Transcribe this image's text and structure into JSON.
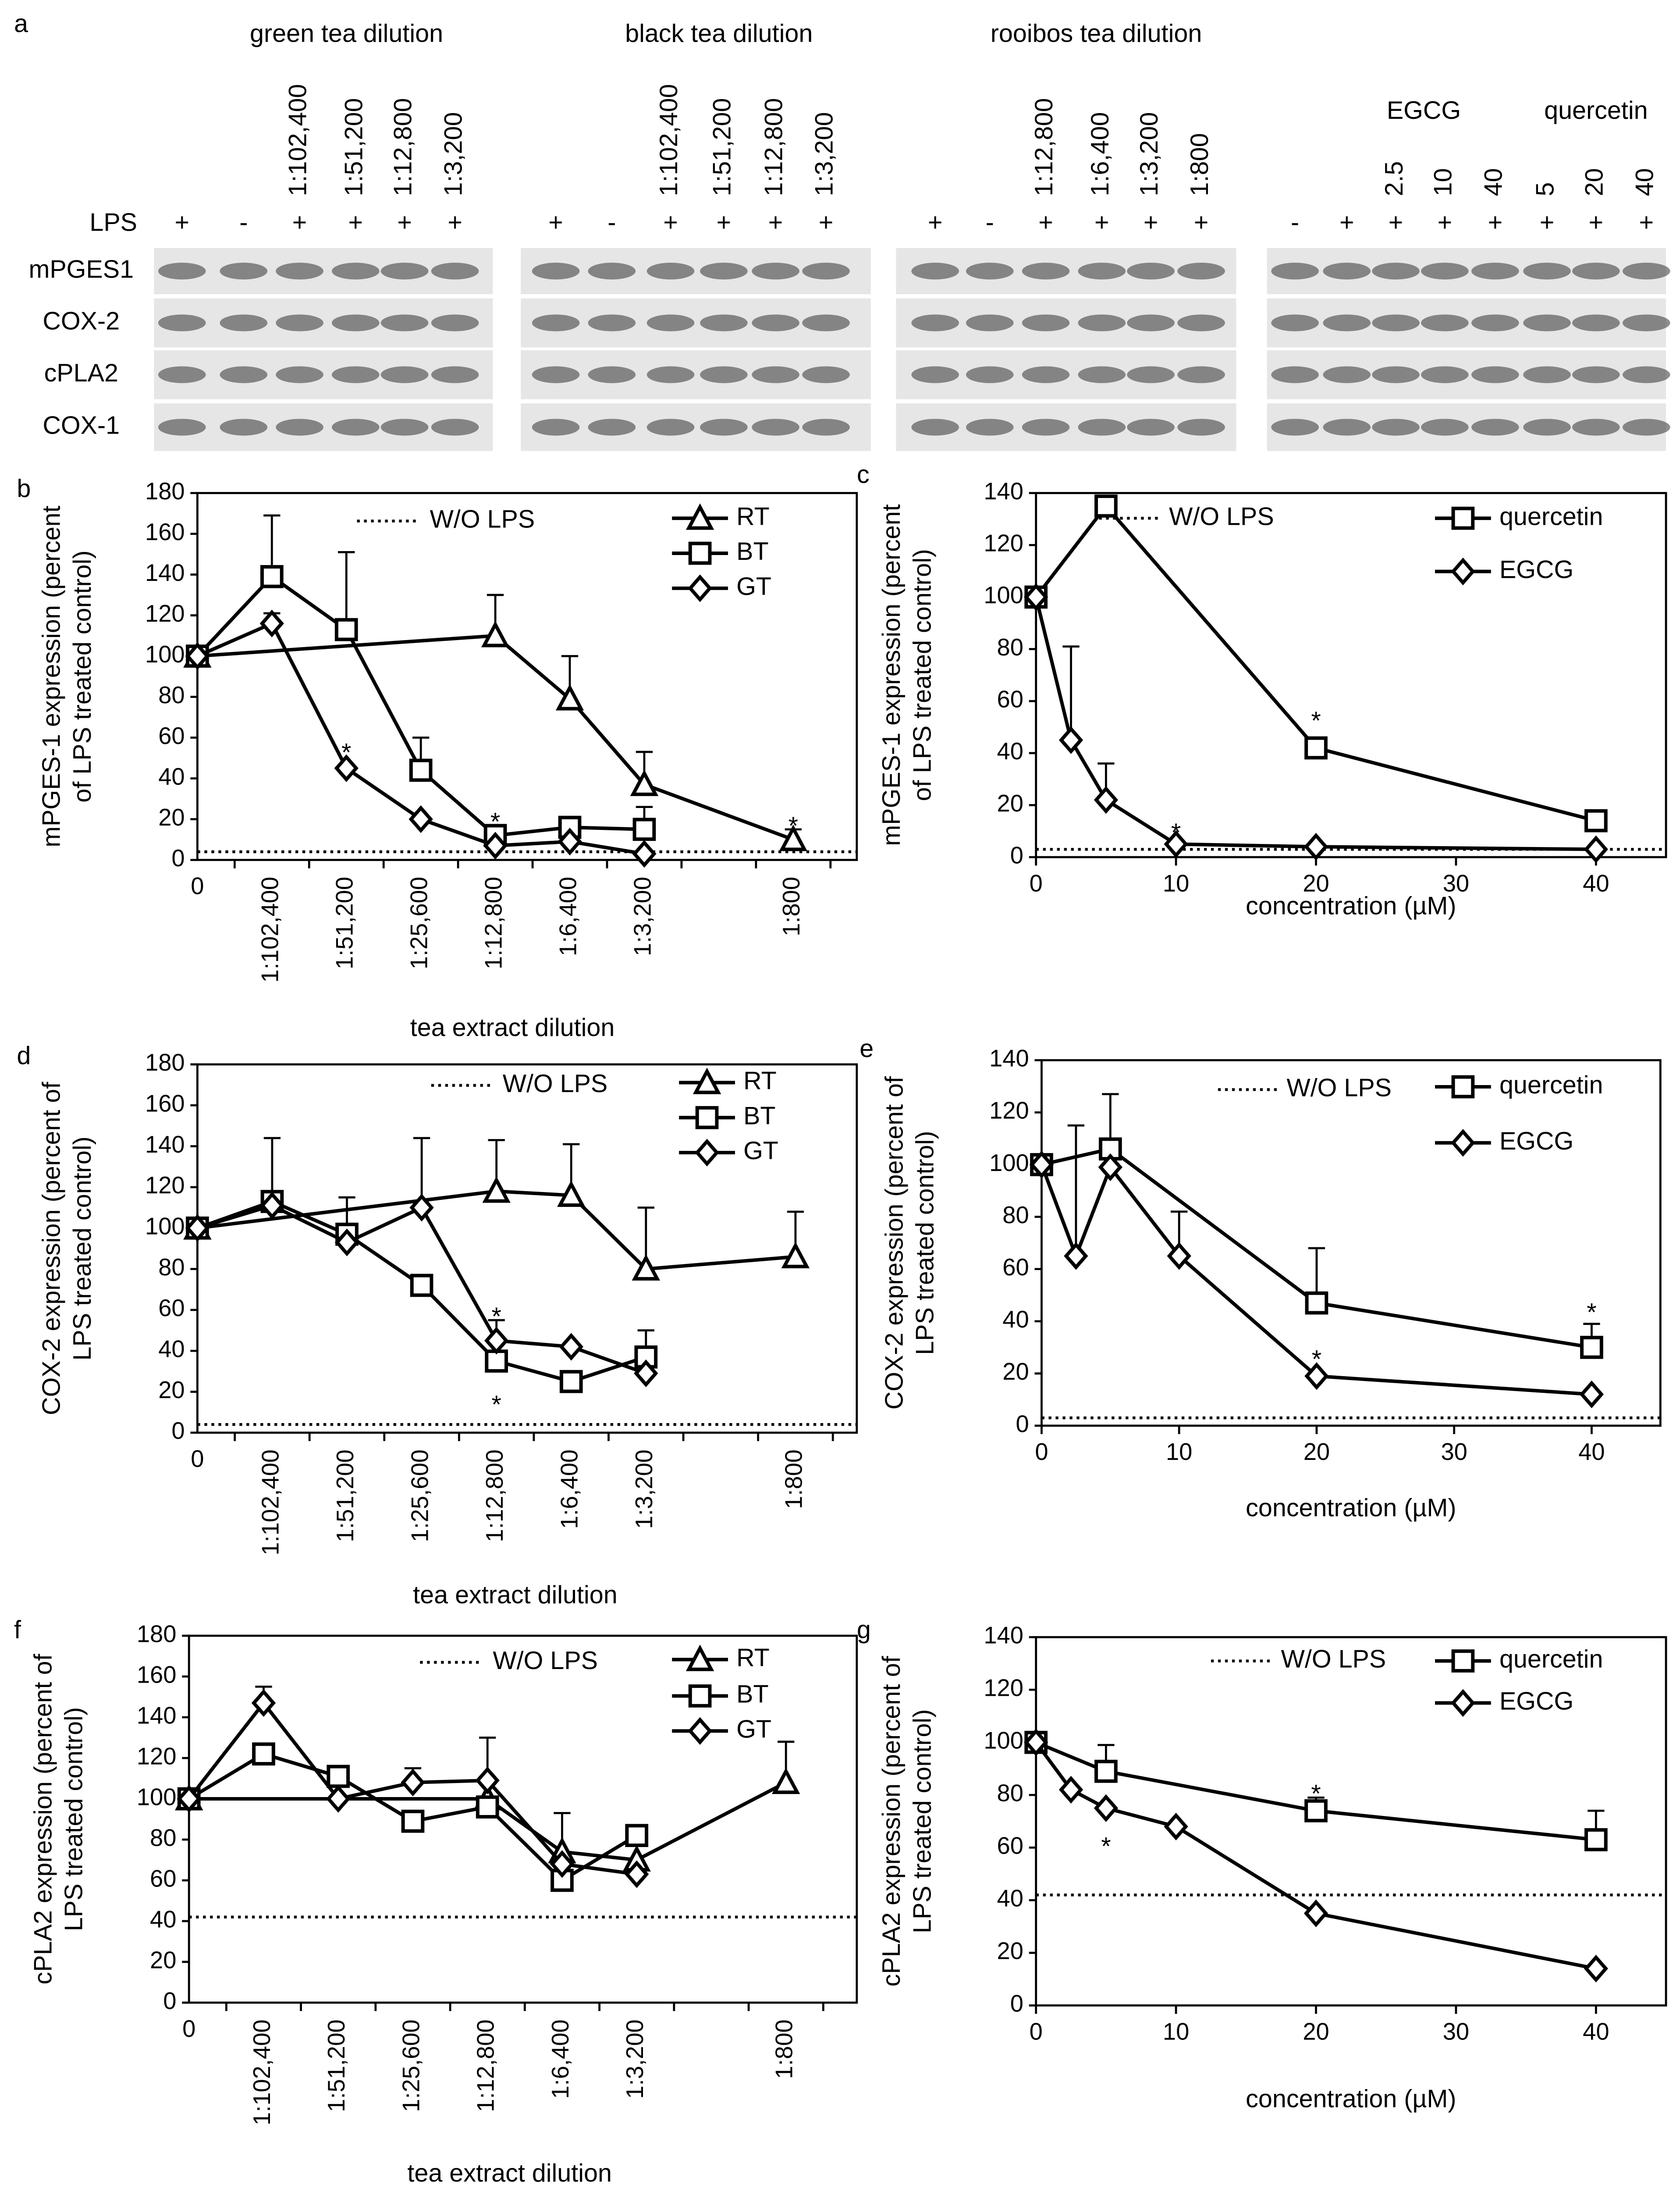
{
  "blot": {
    "panel": "a",
    "lps_label": "LPS",
    "rows": [
      "mPGES1",
      "COX-2",
      "cPLA2",
      "COX-1"
    ],
    "groups": [
      {
        "title": "green tea dilution",
        "lanes": [
          "1:102,400",
          "1:51,200",
          "1:12,800",
          "1:3,200"
        ],
        "lps": [
          "+",
          "-",
          "+",
          "+",
          "+",
          "+"
        ]
      },
      {
        "title": "black tea dilution",
        "lanes": [
          "1:102,400",
          "1:51,200",
          "1:12,800",
          "1:3,200"
        ],
        "lps": [
          "+",
          "-",
          "+",
          "+",
          "+",
          "+"
        ]
      },
      {
        "title": "rooibos tea dilution",
        "lanes": [
          "1:12,800",
          "1:6,400",
          "1:3,200",
          "1:800"
        ],
        "lps": [
          "+",
          "-",
          "+",
          "+",
          "+",
          "+"
        ]
      },
      {
        "lps": [
          "-",
          "+",
          "+",
          "+",
          "+",
          "+",
          "+",
          "+"
        ],
        "treatments": [
          {
            "title": "EGCG",
            "lanes": [
              "2.5",
              "10",
              "40"
            ]
          },
          {
            "title": "quercetin",
            "lanes": [
              "5",
              "20",
              "40"
            ]
          }
        ]
      }
    ]
  },
  "chart_data": [
    {
      "type": "line",
      "panel": "b",
      "ylabel": [
        "mPGES-1 expression (percent",
        "of LPS treated control)"
      ],
      "xlabel": "tea extract dilution",
      "categories": [
        "0",
        "1:102,400",
        "1:51,200",
        "1:25,600",
        "1:12,800",
        "1:6,400",
        "1:3,200",
        null,
        "1:800"
      ],
      "connect_nulls": true,
      "ylim": [
        0,
        180
      ],
      "yticks": [
        0,
        20,
        40,
        60,
        80,
        100,
        120,
        140,
        160,
        180
      ],
      "reference_line": {
        "name": "W/O LPS",
        "value": 4,
        "style": "dotted"
      },
      "legend": "top-right",
      "series": [
        {
          "name": "RT",
          "marker": "triangle",
          "color": "#000000",
          "values": [
            100,
            null,
            null,
            null,
            110,
            79,
            37,
            null,
            10
          ],
          "errors": [
            null,
            null,
            null,
            null,
            20,
            21,
            16,
            null,
            5
          ]
        },
        {
          "name": "BT",
          "marker": "square",
          "color": "#000000",
          "values": [
            100,
            139,
            113,
            44,
            12,
            16,
            15,
            null,
            null
          ],
          "errors": [
            null,
            30,
            38,
            16,
            null,
            null,
            11,
            null,
            null
          ]
        },
        {
          "name": "GT",
          "marker": "diamond",
          "color": "#000000",
          "values": [
            100,
            116,
            45,
            20,
            7,
            9,
            3,
            null,
            null
          ],
          "errors": [
            null,
            5,
            null,
            null,
            null,
            null,
            null,
            null,
            null
          ]
        }
      ],
      "annotations": [
        {
          "text": "*",
          "x": 2,
          "y": 56
        },
        {
          "text": "*",
          "x": 4,
          "y": 22
        },
        {
          "text": "*",
          "x": 8,
          "y": 20
        }
      ]
    },
    {
      "type": "line",
      "panel": "c",
      "ylabel": [
        "mPGES-1 expression (percent",
        "of LPS treated control)"
      ],
      "xlabel": "concentration (µM)",
      "xlim": [
        0,
        45
      ],
      "xticks": [
        0,
        10,
        20,
        30,
        40
      ],
      "ylim": [
        0,
        140
      ],
      "yticks": [
        0,
        20,
        40,
        60,
        80,
        100,
        120,
        140
      ],
      "reference_line": {
        "name": "W/O LPS",
        "value": 3,
        "style": "dotted"
      },
      "legend": "top-right",
      "series": [
        {
          "name": "quercetin",
          "marker": "square",
          "color": "#000000",
          "x": [
            0,
            5,
            20,
            40
          ],
          "values": [
            100,
            135,
            42,
            14
          ],
          "errors": [
            null,
            null,
            null,
            null
          ]
        },
        {
          "name": "EGCG",
          "marker": "diamond",
          "color": "#000000",
          "x": [
            0,
            2.5,
            5,
            10,
            20,
            40
          ],
          "values": [
            100,
            45,
            22,
            5,
            4,
            3
          ],
          "errors": [
            null,
            36,
            14,
            null,
            null,
            null
          ]
        }
      ],
      "annotations": [
        {
          "text": "*",
          "x": 10,
          "y": 12
        },
        {
          "text": "*",
          "x": 20,
          "y": 55
        }
      ]
    },
    {
      "type": "line",
      "panel": "d",
      "ylabel": [
        "COX-2 expression (percent of",
        "LPS treated control)"
      ],
      "xlabel": "tea extract dilution",
      "categories": [
        "0",
        "1:102,400",
        "1:51,200",
        "1:25,600",
        "1:12,800",
        "1:6,400",
        "1:3,200",
        null,
        "1:800"
      ],
      "connect_nulls": true,
      "ylim": [
        0,
        180
      ],
      "yticks": [
        0,
        20,
        40,
        60,
        80,
        100,
        120,
        140,
        160,
        180
      ],
      "reference_line": {
        "name": "W/O LPS",
        "value": 4,
        "style": "dotted"
      },
      "legend": "top-right",
      "series": [
        {
          "name": "RT",
          "marker": "triangle",
          "color": "#000000",
          "values": [
            100,
            null,
            null,
            null,
            118,
            116,
            80,
            null,
            86
          ],
          "errors": [
            null,
            null,
            null,
            null,
            25,
            25,
            30,
            null,
            22
          ]
        },
        {
          "name": "BT",
          "marker": "square",
          "color": "#000000",
          "values": [
            100,
            113,
            97,
            72,
            35,
            25,
            37,
            null,
            null
          ],
          "errors": [
            null,
            31,
            18,
            null,
            null,
            null,
            13,
            null,
            null
          ]
        },
        {
          "name": "GT",
          "marker": "diamond",
          "color": "#000000",
          "values": [
            100,
            111,
            93,
            110,
            45,
            42,
            29,
            null,
            null
          ],
          "errors": [
            null,
            null,
            null,
            34,
            10,
            null,
            null,
            null,
            null
          ]
        }
      ],
      "annotations": [
        {
          "text": "*",
          "x": 4,
          "y": 60
        },
        {
          "text": "*",
          "x": 4,
          "y": 17
        }
      ]
    },
    {
      "type": "line",
      "panel": "e",
      "ylabel": [
        "COX-2 expression (percent of",
        "LPS treated control)"
      ],
      "xlabel": "concentration (µM)",
      "xlim": [
        0,
        45
      ],
      "xticks": [
        0,
        10,
        20,
        30,
        40
      ],
      "ylim": [
        0,
        140
      ],
      "yticks": [
        0,
        20,
        40,
        60,
        80,
        100,
        120,
        140
      ],
      "reference_line": {
        "name": "W/O LPS",
        "value": 3,
        "style": "dotted"
      },
      "legend": "top-right",
      "series": [
        {
          "name": "quercetin",
          "marker": "square",
          "color": "#000000",
          "x": [
            0,
            5,
            20,
            40
          ],
          "values": [
            100,
            106,
            47,
            30
          ],
          "errors": [
            null,
            21,
            21,
            9
          ]
        },
        {
          "name": "EGCG",
          "marker": "diamond",
          "color": "#000000",
          "x": [
            0,
            2.5,
            5,
            10,
            20,
            40
          ],
          "values": [
            100,
            65,
            99,
            65,
            19,
            12
          ],
          "errors": [
            null,
            50,
            null,
            17,
            null,
            null
          ]
        }
      ],
      "annotations": [
        {
          "text": "*",
          "x": 20,
          "y": 28
        },
        {
          "text": "*",
          "x": 40,
          "y": 46
        }
      ]
    },
    {
      "type": "line",
      "panel": "f",
      "ylabel": [
        "cPLA2 expression (percent of",
        "LPS treated control)"
      ],
      "xlabel": "tea extract dilution",
      "categories": [
        "0",
        "1:102,400",
        "1:51,200",
        "1:25,600",
        "1:12,800",
        "1:6,400",
        "1:3,200",
        null,
        "1:800"
      ],
      "connect_nulls": true,
      "ylim": [
        0,
        180
      ],
      "yticks": [
        0,
        20,
        40,
        60,
        80,
        100,
        120,
        140,
        160,
        180
      ],
      "reference_line": {
        "name": "W/O LPS",
        "value": 42,
        "style": "dotted"
      },
      "legend": "top-right",
      "series": [
        {
          "name": "RT",
          "marker": "triangle",
          "color": "#000000",
          "values": [
            100,
            null,
            null,
            null,
            100,
            74,
            70,
            null,
            108
          ],
          "errors": [
            null,
            null,
            null,
            null,
            null,
            19,
            null,
            null,
            20
          ]
        },
        {
          "name": "BT",
          "marker": "square",
          "color": "#000000",
          "values": [
            100,
            122,
            111,
            89,
            96,
            60,
            82,
            null,
            null
          ],
          "errors": [
            null,
            null,
            null,
            null,
            null,
            null,
            null,
            null,
            null
          ]
        },
        {
          "name": "GT",
          "marker": "diamond",
          "color": "#000000",
          "values": [
            100,
            147,
            100,
            108,
            109,
            68,
            63,
            null,
            null
          ],
          "errors": [
            null,
            8,
            null,
            7,
            21,
            null,
            null,
            null,
            null
          ]
        }
      ],
      "annotations": []
    },
    {
      "type": "line",
      "panel": "g",
      "ylabel": [
        "cPLA2 expression (percent of",
        "LPS treated control)"
      ],
      "xlabel": "concentration (µM)",
      "xlim": [
        0,
        45
      ],
      "xticks": [
        0,
        10,
        20,
        30,
        40
      ],
      "ylim": [
        0,
        140
      ],
      "yticks": [
        0,
        20,
        40,
        60,
        80,
        100,
        120,
        140
      ],
      "reference_line": {
        "name": "W/O LPS",
        "value": 42,
        "style": "dotted"
      },
      "legend": "top-right",
      "series": [
        {
          "name": "quercetin",
          "marker": "square",
          "color": "#000000",
          "x": [
            0,
            5,
            20,
            40
          ],
          "values": [
            100,
            89,
            74,
            63
          ],
          "errors": [
            null,
            10,
            5,
            11
          ]
        },
        {
          "name": "EGCG",
          "marker": "diamond",
          "color": "#000000",
          "x": [
            0,
            2.5,
            5,
            10,
            20,
            40
          ],
          "values": [
            100,
            82,
            75,
            68,
            35,
            14
          ],
          "errors": [
            null,
            null,
            null,
            null,
            null,
            null
          ]
        }
      ],
      "annotations": [
        {
          "text": "*",
          "x": 5,
          "y": 63
        },
        {
          "text": "*",
          "x": 20,
          "y": 83
        }
      ]
    }
  ]
}
